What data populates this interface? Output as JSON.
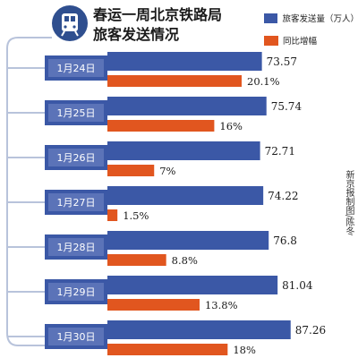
{
  "title": "春运一周北京铁路局\n旅客发送情况",
  "credit": "新京报制图/陈冬",
  "colors": {
    "volume": "#3b58a6",
    "growth": "#e1561f",
    "date_label_bg": "#ffffff"
  },
  "legend": {
    "volume": "旅客发送量（万人）",
    "growth": "同比增幅"
  },
  "chart_data": {
    "type": "bar",
    "title": "春运一周北京铁路局旅客发送情况",
    "categories": [
      "1月24日",
      "1月25日",
      "1月26日",
      "1月27日",
      "1月28日",
      "1月29日",
      "1月30日"
    ],
    "category_labels": [
      "1月24日",
      "1月25日",
      "1月26日",
      "1月27日",
      "1月28日",
      "1月29日",
      "1月30日"
    ],
    "series": [
      {
        "name": "旅客发送量（万人）",
        "values": [
          73.57,
          75.74,
          72.71,
          74.22,
          76.8,
          81.04,
          87.26
        ],
        "labels": [
          "73.57",
          "75.74",
          "72.71",
          "74.22",
          "76.8",
          "81.04",
          "87.26"
        ]
      },
      {
        "name": "同比增幅",
        "values": [
          20.1,
          16,
          7,
          1.5,
          8.8,
          13.8,
          18
        ],
        "labels": [
          "20.1%",
          "16%",
          "7%",
          "1.5%",
          "8.8%",
          "13.8%",
          "18%"
        ]
      }
    ],
    "orientation": "horizontal",
    "legend_position": "top-right",
    "grid": false
  }
}
